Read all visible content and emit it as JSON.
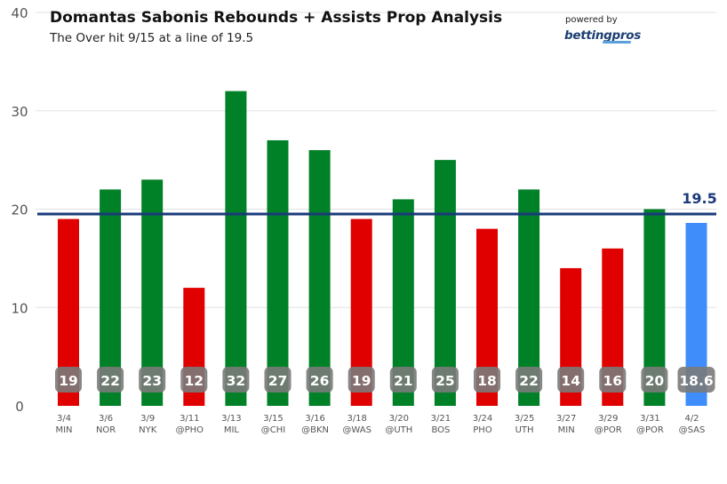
{
  "header": {
    "title": "Domantas Sabonis Rebounds + Assists Prop Analysis",
    "subtitle": "The Over hit 9/15 at a line of 19.5"
  },
  "branding": {
    "powered_by": "powered by",
    "brand_name": "bettingpros"
  },
  "colors": {
    "over": "#008027",
    "under": "#e00000",
    "projection": "#3f8cfb",
    "line": "#1a3a7a",
    "grid": "#e2e2e2",
    "badge_bg": "#7a7a7a"
  },
  "chart_data": {
    "type": "bar",
    "title": "Domantas Sabonis Rebounds + Assists Prop Analysis",
    "subtitle": "The Over hit 9/15 at a line of 19.5",
    "categories": [
      {
        "date": "3/4",
        "opp": "MIN"
      },
      {
        "date": "3/6",
        "opp": "NOR"
      },
      {
        "date": "3/9",
        "opp": "NYK"
      },
      {
        "date": "3/11",
        "opp": "@PHO"
      },
      {
        "date": "3/13",
        "opp": "MIL"
      },
      {
        "date": "3/15",
        "opp": "@CHI"
      },
      {
        "date": "3/16",
        "opp": "@BKN"
      },
      {
        "date": "3/18",
        "opp": "@WAS"
      },
      {
        "date": "3/20",
        "opp": "@UTH"
      },
      {
        "date": "3/21",
        "opp": "BOS"
      },
      {
        "date": "3/24",
        "opp": "PHO"
      },
      {
        "date": "3/25",
        "opp": "UTH"
      },
      {
        "date": "3/27",
        "opp": "MIN"
      },
      {
        "date": "3/29",
        "opp": "@POR"
      },
      {
        "date": "3/31",
        "opp": "@POR"
      },
      {
        "date": "4/2",
        "opp": "@SAS"
      }
    ],
    "values": [
      19,
      22,
      23,
      12,
      32,
      27,
      26,
      19,
      21,
      25,
      18,
      22,
      14,
      16,
      20,
      18.6
    ],
    "labels": [
      "19",
      "22",
      "23",
      "12",
      "32",
      "27",
      "26",
      "19",
      "21",
      "25",
      "18",
      "22",
      "14",
      "16",
      "20",
      "18.6"
    ],
    "results": [
      "under",
      "over",
      "over",
      "under",
      "over",
      "over",
      "over",
      "under",
      "over",
      "over",
      "under",
      "over",
      "under",
      "under",
      "over",
      "projection"
    ],
    "line_value": 19.5,
    "line_label": "19.5",
    "ylim": [
      0,
      40
    ],
    "yticks": [
      0,
      10,
      20,
      30,
      40
    ],
    "grid": true,
    "xlabel": "",
    "ylabel": ""
  }
}
